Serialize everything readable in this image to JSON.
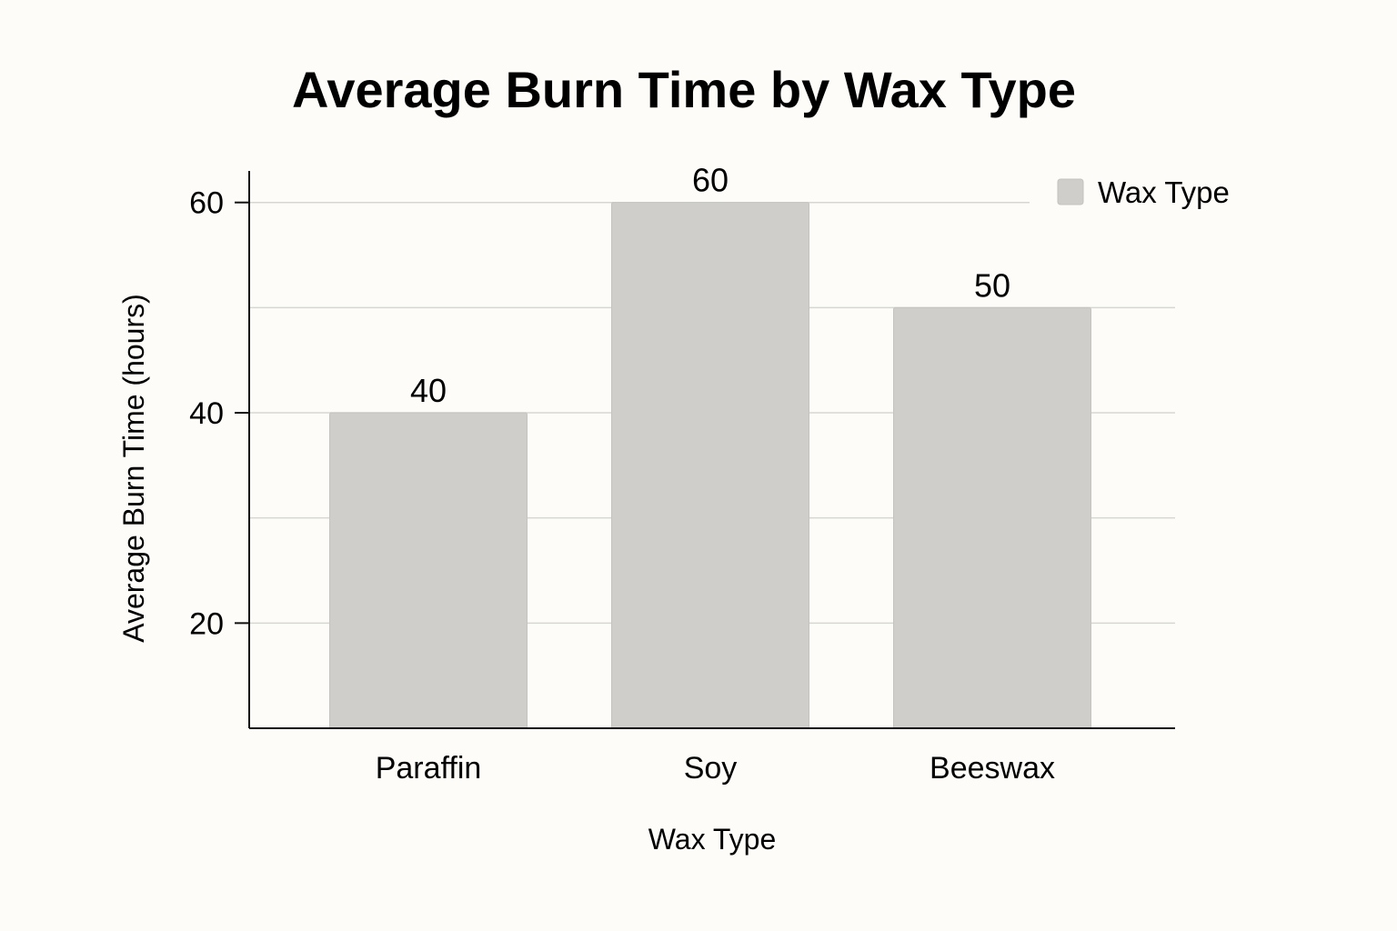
{
  "chart_data": {
    "type": "bar",
    "title": "Average Burn Time by Wax Type",
    "xlabel": "Wax Type",
    "ylabel": "Average Burn Time (hours)",
    "categories": [
      "Paraffin",
      "Soy",
      "Beeswax"
    ],
    "series": [
      {
        "name": "Wax Type",
        "values": [
          40,
          60,
          50
        ],
        "data_labels": [
          "40",
          "60",
          "50"
        ]
      }
    ],
    "yticks": [
      20,
      40,
      60
    ],
    "ylim": [
      10,
      63
    ],
    "grid": true,
    "legend": "top-right",
    "colors": {
      "bar": "#cfcecb",
      "bar_stroke": "#c4c3bf",
      "grid": "#d6d6d3",
      "axis": "#111111",
      "background": "#fdfcf8"
    }
  }
}
